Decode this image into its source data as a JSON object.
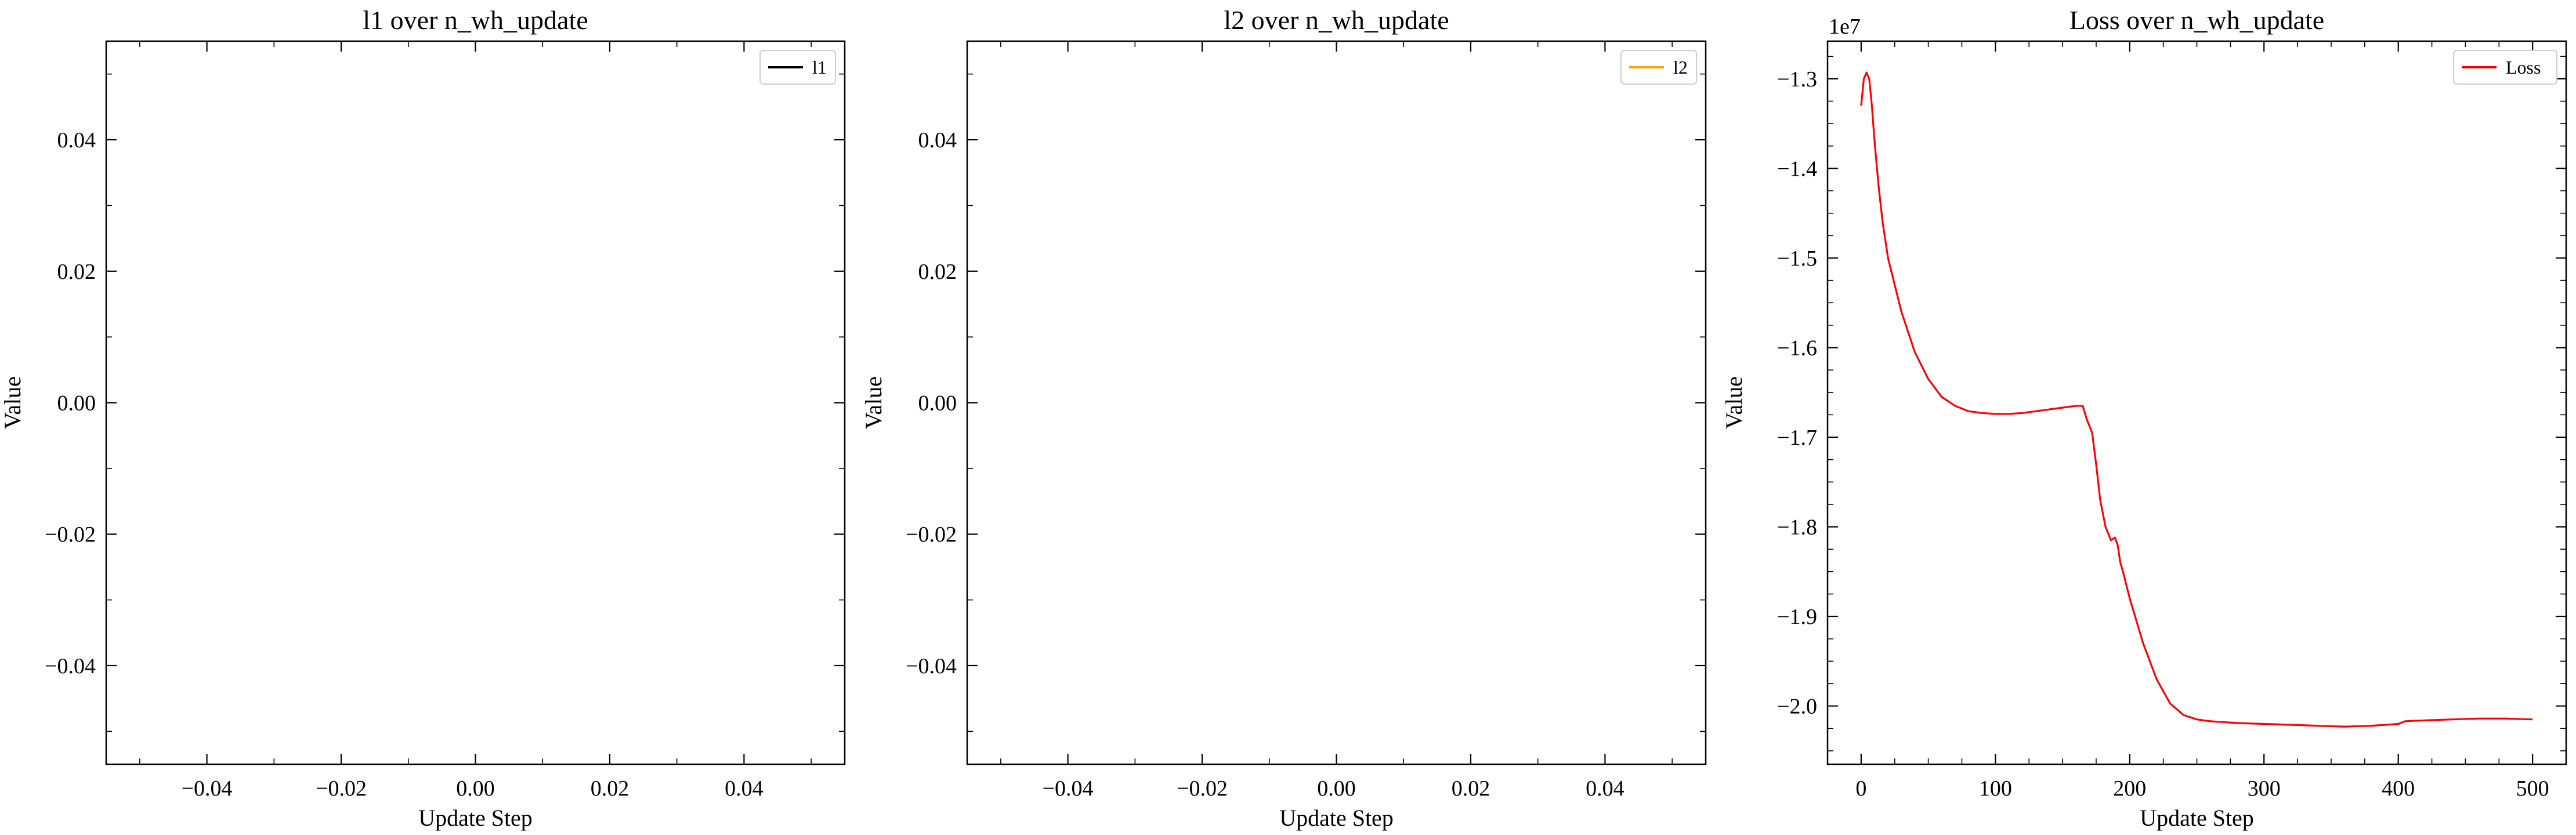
{
  "chart_data": [
    {
      "type": "line",
      "title": "l1 over n_wh_update",
      "xlabel": "Update Step",
      "ylabel": "Value",
      "xlim": [
        -0.055,
        0.055
      ],
      "ylim": [
        -0.055,
        0.055
      ],
      "xticks": [
        -0.04,
        -0.02,
        0.0,
        0.02,
        0.04
      ],
      "xtick_labels": [
        "−0.04",
        "−0.02",
        "0.00",
        "0.02",
        "0.04"
      ],
      "yticks": [
        -0.04,
        -0.02,
        0.0,
        0.02,
        0.04
      ],
      "ytick_labels": [
        "−0.04",
        "−0.02",
        "0.00",
        "0.02",
        "0.04"
      ],
      "minor_x": 0.01,
      "minor_y": 0.01,
      "grid": false,
      "legend": "top-right",
      "series": [
        {
          "name": "l1",
          "color": "#000000",
          "x": [],
          "y": []
        }
      ]
    },
    {
      "type": "line",
      "title": "l2 over n_wh_update",
      "xlabel": "Update Step",
      "ylabel": "Value",
      "xlim": [
        -0.055,
        0.055
      ],
      "ylim": [
        -0.055,
        0.055
      ],
      "xticks": [
        -0.04,
        -0.02,
        0.0,
        0.02,
        0.04
      ],
      "xtick_labels": [
        "−0.04",
        "−0.02",
        "0.00",
        "0.02",
        "0.04"
      ],
      "yticks": [
        -0.04,
        -0.02,
        0.0,
        0.02,
        0.04
      ],
      "ytick_labels": [
        "−0.04",
        "−0.02",
        "0.00",
        "0.02",
        "0.04"
      ],
      "minor_x": 0.01,
      "minor_y": 0.01,
      "grid": false,
      "legend": "top-right",
      "series": [
        {
          "name": "l2",
          "color": "#ffa500",
          "x": [],
          "y": []
        }
      ]
    },
    {
      "type": "line",
      "title": "Loss over n_wh_update",
      "xlabel": "Update Step",
      "ylabel": "Value",
      "y_offset_label": "1e7",
      "xlim": [
        -25,
        525
      ],
      "ylim": [
        -2.065,
        -1.258
      ],
      "xticks": [
        0,
        100,
        200,
        300,
        400,
        500
      ],
      "xtick_labels": [
        "0",
        "100",
        "200",
        "300",
        "400",
        "500"
      ],
      "yticks": [
        -2.0,
        -1.9,
        -1.8,
        -1.7,
        -1.6,
        -1.5,
        -1.4,
        -1.3
      ],
      "ytick_labels": [
        "−2.0",
        "−1.9",
        "−1.8",
        "−1.7",
        "−1.6",
        "−1.5",
        "−1.4",
        "−1.3"
      ],
      "minor_x": 25,
      "minor_y": 0.025,
      "grid": false,
      "legend": "top-right",
      "series": [
        {
          "name": "Loss",
          "color": "#ff0000",
          "x": [
            0,
            2,
            4,
            6,
            8,
            10,
            13,
            16,
            20,
            25,
            30,
            40,
            50,
            60,
            70,
            80,
            90,
            100,
            110,
            120,
            130,
            140,
            150,
            160,
            165,
            168,
            172,
            175,
            178,
            182,
            186,
            189,
            191,
            193,
            195,
            200,
            210,
            220,
            230,
            240,
            250,
            260,
            280,
            300,
            320,
            340,
            360,
            380,
            400,
            405,
            420,
            440,
            460,
            480,
            500
          ],
          "y": [
            -1.33,
            -1.3,
            -1.293,
            -1.3,
            -1.33,
            -1.37,
            -1.42,
            -1.46,
            -1.5,
            -1.53,
            -1.56,
            -1.605,
            -1.635,
            -1.655,
            -1.665,
            -1.671,
            -1.673,
            -1.674,
            -1.674,
            -1.673,
            -1.671,
            -1.669,
            -1.667,
            -1.665,
            -1.665,
            -1.68,
            -1.695,
            -1.73,
            -1.77,
            -1.8,
            -1.815,
            -1.812,
            -1.82,
            -1.84,
            -1.85,
            -1.88,
            -1.93,
            -1.97,
            -1.997,
            -2.01,
            -2.015,
            -2.017,
            -2.019,
            -2.02,
            -2.021,
            -2.022,
            -2.023,
            -2.022,
            -2.02,
            -2.017,
            -2.016,
            -2.015,
            -2.014,
            -2.014,
            -2.015
          ]
        }
      ]
    }
  ]
}
